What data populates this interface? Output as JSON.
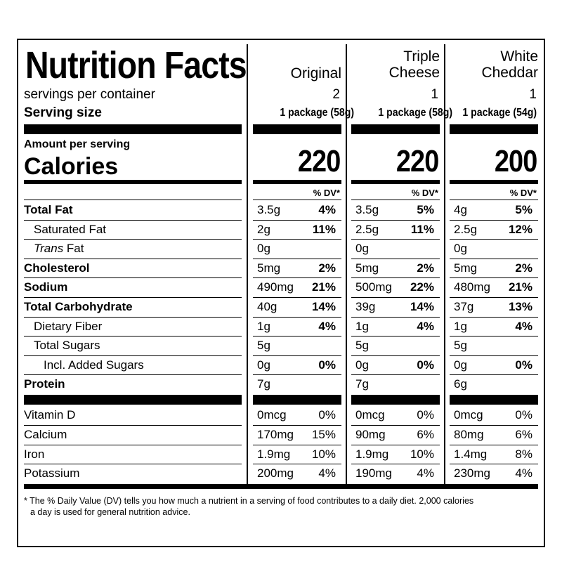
{
  "title": "Nutrition Facts",
  "columns": [
    "Original",
    "Triple\nCheese",
    "White\nCheddar"
  ],
  "column_lines": [
    [
      "Original"
    ],
    [
      "Triple",
      "Cheese"
    ],
    [
      "White",
      "Cheddar"
    ]
  ],
  "servings_label": "servings per container",
  "servings": [
    "2",
    "1",
    "1"
  ],
  "serving_size_label": "Serving size",
  "serving_sizes": [
    "1 package (58g)",
    "1 package (58g)",
    "1 package (54g)"
  ],
  "amount_label": "Amount per serving",
  "calories_label": "Calories",
  "calories": [
    "220",
    "220",
    "200"
  ],
  "dv_header": "% DV*",
  "nutrients": [
    {
      "name": "Total Fat",
      "bold": true,
      "indent": 0,
      "vals": [
        [
          "3.5g",
          "4%"
        ],
        [
          "3.5g",
          "5%"
        ],
        [
          "4g",
          "5%"
        ]
      ]
    },
    {
      "name": "Saturated Fat",
      "bold": false,
      "indent": 1,
      "vals": [
        [
          "2g",
          "11%"
        ],
        [
          "2.5g",
          "11%"
        ],
        [
          "2.5g",
          "12%"
        ]
      ]
    },
    {
      "name_italic": "Trans",
      "name": " Fat",
      "bold": false,
      "indent": 1,
      "vals": [
        [
          "0g",
          ""
        ],
        [
          "0g",
          ""
        ],
        [
          "0g",
          ""
        ]
      ]
    },
    {
      "name": "Cholesterol",
      "bold": true,
      "indent": 0,
      "vals": [
        [
          "5mg",
          "2%"
        ],
        [
          "5mg",
          "2%"
        ],
        [
          "5mg",
          "2%"
        ]
      ]
    },
    {
      "name": "Sodium",
      "bold": true,
      "indent": 0,
      "vals": [
        [
          "490mg",
          "21%"
        ],
        [
          "500mg",
          "22%"
        ],
        [
          "480mg",
          "21%"
        ]
      ]
    },
    {
      "name": "Total Carbohydrate",
      "bold": true,
      "indent": 0,
      "vals": [
        [
          "40g",
          "14%"
        ],
        [
          "39g",
          "14%"
        ],
        [
          "37g",
          "13%"
        ]
      ]
    },
    {
      "name": "Dietary Fiber",
      "bold": false,
      "indent": 1,
      "vals": [
        [
          "1g",
          "4%"
        ],
        [
          "1g",
          "4%"
        ],
        [
          "1g",
          "4%"
        ]
      ]
    },
    {
      "name": "Total Sugars",
      "bold": false,
      "indent": 1,
      "vals": [
        [
          "5g",
          ""
        ],
        [
          "5g",
          ""
        ],
        [
          "5g",
          ""
        ]
      ]
    },
    {
      "name": "Incl. Added Sugars",
      "bold": false,
      "indent": 2,
      "vals": [
        [
          "0g",
          "0%"
        ],
        [
          "0g",
          "0%"
        ],
        [
          "0g",
          "0%"
        ]
      ]
    },
    {
      "name": "Protein",
      "bold": true,
      "indent": 0,
      "vals": [
        [
          "7g",
          ""
        ],
        [
          "7g",
          ""
        ],
        [
          "6g",
          ""
        ]
      ]
    }
  ],
  "vitamins": [
    {
      "name": "Vitamin D",
      "vals": [
        [
          "0mcg",
          "0%"
        ],
        [
          "0mcg",
          "0%"
        ],
        [
          "0mcg",
          "0%"
        ]
      ]
    },
    {
      "name": "Calcium",
      "vals": [
        [
          "170mg",
          "15%"
        ],
        [
          "90mg",
          "6%"
        ],
        [
          "80mg",
          "6%"
        ]
      ]
    },
    {
      "name": "Iron",
      "vals": [
        [
          "1.9mg",
          "10%"
        ],
        [
          "1.9mg",
          "10%"
        ],
        [
          "1.4mg",
          "8%"
        ]
      ]
    },
    {
      "name": "Potassium",
      "vals": [
        [
          "200mg",
          "4%"
        ],
        [
          "190mg",
          "4%"
        ],
        [
          "230mg",
          "4%"
        ]
      ]
    }
  ],
  "footnote_lines": [
    "* The % Daily Value (DV) tells you how much a nutrient in a serving of food contributes to a daily diet. 2,000 calories",
    "a day is used for general nutrition advice."
  ]
}
